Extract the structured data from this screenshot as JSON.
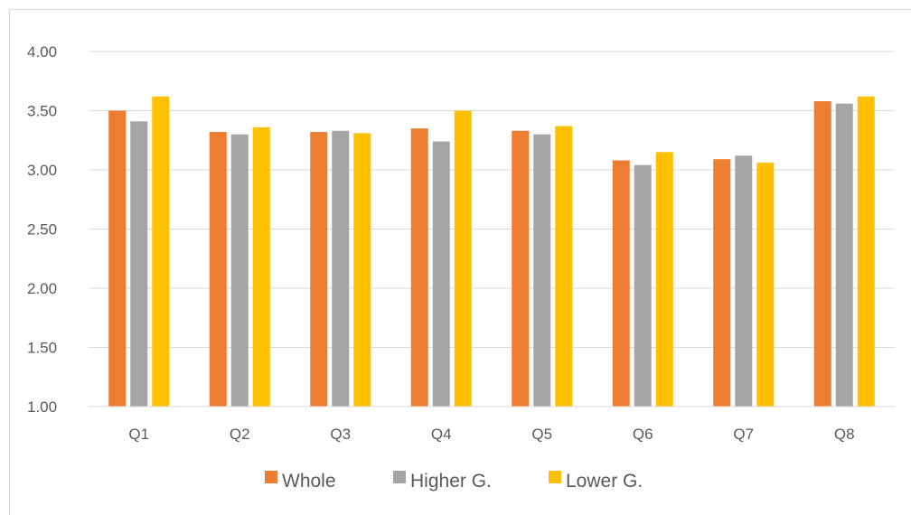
{
  "chart_data": {
    "type": "bar",
    "categories": [
      "Q1",
      "Q2",
      "Q3",
      "Q4",
      "Q5",
      "Q6",
      "Q7",
      "Q8"
    ],
    "series": [
      {
        "name": "Whole",
        "color": "#ED7D31",
        "values": [
          3.5,
          3.32,
          3.32,
          3.35,
          3.33,
          3.08,
          3.09,
          3.58
        ]
      },
      {
        "name": "Higher G.",
        "color": "#A5A5A5",
        "values": [
          3.41,
          3.3,
          3.33,
          3.24,
          3.3,
          3.04,
          3.12,
          3.56
        ]
      },
      {
        "name": "Lower G.",
        "color": "#FFC000",
        "values": [
          3.62,
          3.36,
          3.31,
          3.5,
          3.37,
          3.15,
          3.06,
          3.62
        ]
      }
    ],
    "ylim": [
      1.0,
      4.0
    ],
    "yticks": [
      "1.00",
      "1.50",
      "2.00",
      "2.50",
      "3.00",
      "3.50",
      "4.00"
    ],
    "title": "",
    "xlabel": "",
    "ylabel": "",
    "grid": true,
    "legend_position": "bottom",
    "gridline_color": "#D9D9D9",
    "axis_text_color": "#595959"
  }
}
